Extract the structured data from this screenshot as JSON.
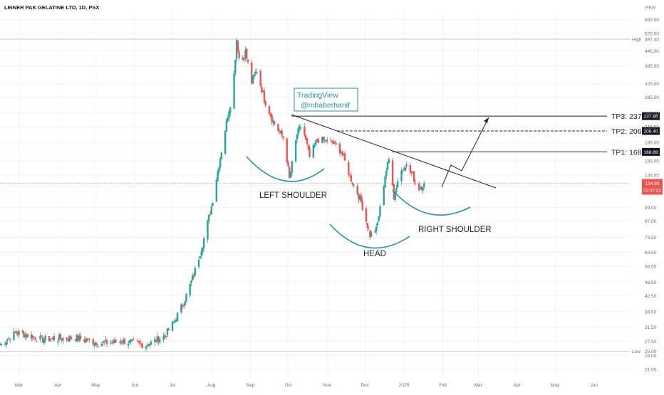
{
  "header": {
    "symbol_line": "LEINER PAK GELATINE LTD, 1D, PSX",
    "currency": "PKR"
  },
  "colors": {
    "up": "#26a69a",
    "down": "#ef5350",
    "teal": "#2a8fa8",
    "line": "#1f2329",
    "grid": "#e9ecef",
    "hl": "#b2b5be"
  },
  "watermark": {
    "line1": "TradingView",
    "line2": "@mbaberhanif"
  },
  "targets": [
    {
      "label": "TP3: 237",
      "tag": "237.86",
      "price": 237.86
    },
    {
      "label": "TP2: 206",
      "tag": "206.40",
      "price": 206.4
    },
    {
      "label": "TP1: 168",
      "tag": "168.89",
      "price": 168.89
    }
  ],
  "current": {
    "price": 124.99,
    "countdown": "02:37:22",
    "tag": "124.99"
  },
  "high_marker": {
    "label": "High",
    "value": "497.40"
  },
  "low_marker": {
    "label": "Low",
    "value": "25.00"
  },
  "annotations": {
    "left_shoulder": "LEFT SHOULDER",
    "head": "HEAD",
    "right_shoulder": "RIGHT SHOULDER"
  },
  "chart_data": {
    "type": "candlestick",
    "title": "LEINER PAK GELATINE LTD, 1D, PSX",
    "y_scale": "log",
    "ylim": [
      19.5,
      640
    ],
    "y_ticks": [
      "600.00",
      "525.00",
      "445.00",
      "385.00",
      "325.00",
      "285.00",
      "245.00",
      "215.00",
      "185.00",
      "155.00",
      "135.00",
      "115.00",
      "99.00",
      "87.00",
      "74.50",
      "64.50",
      "56.50",
      "48.50",
      "42.50",
      "36.50",
      "31.50",
      "27.50",
      "24.00",
      "21.00"
    ],
    "x_ticks": [
      "Mar",
      "Apr",
      "May",
      "Jun",
      "Jul",
      "Aug",
      "Sep",
      "Oct",
      "Nov",
      "Dec",
      "2025",
      "Feb",
      "Mar",
      "Apr",
      "May",
      "Jun"
    ],
    "x_range": [
      "2024-02-15",
      "2025-06-30"
    ],
    "last_date": "2025-01-17",
    "anchors": [
      [
        "2024-02-15",
        26.5
      ],
      [
        "2024-02-28",
        30.0
      ],
      [
        "2024-03-20",
        28.0
      ],
      [
        "2024-04-15",
        28.5
      ],
      [
        "2024-05-05",
        27.0
      ],
      [
        "2024-05-25",
        27.5
      ],
      [
        "2024-06-10",
        26.5
      ],
      [
        "2024-06-25",
        29.0
      ],
      [
        "2024-07-02",
        33.0
      ],
      [
        "2024-07-10",
        40.0
      ],
      [
        "2024-07-18",
        52.0
      ],
      [
        "2024-07-25",
        70.0
      ],
      [
        "2024-08-01",
        100.0
      ],
      [
        "2024-08-08",
        160.0
      ],
      [
        "2024-08-14",
        240.0
      ],
      [
        "2024-08-18",
        300.0
      ],
      [
        "2024-08-21",
        497.4
      ],
      [
        "2024-08-24",
        380.0
      ],
      [
        "2024-08-28",
        440.0
      ],
      [
        "2024-09-02",
        330.0
      ],
      [
        "2024-09-06",
        370.0
      ],
      [
        "2024-09-12",
        280.0
      ],
      [
        "2024-09-20",
        220.0
      ],
      [
        "2024-09-28",
        190.0
      ],
      [
        "2024-10-02",
        130.0
      ],
      [
        "2024-10-08",
        200.0
      ],
      [
        "2024-10-12",
        220.0
      ],
      [
        "2024-10-18",
        160.0
      ],
      [
        "2024-10-24",
        190.0
      ],
      [
        "2024-11-05",
        185.0
      ],
      [
        "2024-11-12",
        170.0
      ],
      [
        "2024-11-20",
        130.0
      ],
      [
        "2024-11-28",
        105.0
      ],
      [
        "2024-12-05",
        76.0
      ],
      [
        "2024-12-10",
        80.0
      ],
      [
        "2024-12-14",
        105.0
      ],
      [
        "2024-12-17",
        135.0
      ],
      [
        "2024-12-21",
        165.0
      ],
      [
        "2024-12-24",
        110.0
      ],
      [
        "2024-12-28",
        135.0
      ],
      [
        "2025-01-02",
        150.0
      ],
      [
        "2025-01-08",
        135.0
      ],
      [
        "2025-01-12",
        118.0
      ],
      [
        "2025-01-15",
        122.0
      ],
      [
        "2025-01-17",
        125.0
      ]
    ]
  }
}
